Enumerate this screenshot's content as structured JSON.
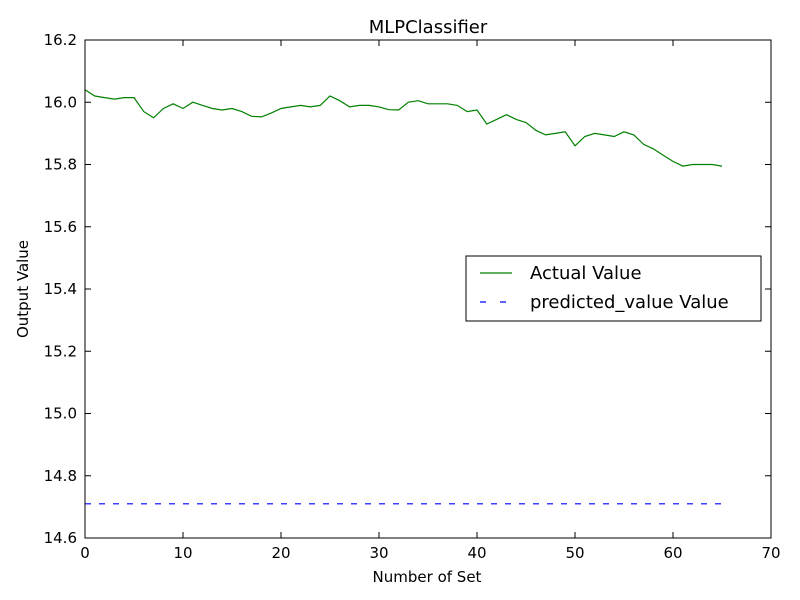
{
  "chart_data": {
    "type": "line",
    "title": "MLPClassifier",
    "xlabel": "Number of Set",
    "ylabel": "Output Value",
    "xlim": [
      0,
      70
    ],
    "ylim": [
      14.6,
      16.2
    ],
    "xticks": [
      0,
      10,
      20,
      30,
      40,
      50,
      60,
      70
    ],
    "yticks": [
      14.6,
      14.8,
      15.0,
      15.2,
      15.4,
      15.6,
      15.8,
      16.0,
      16.2
    ],
    "xtick_labels": [
      "0",
      "10",
      "20",
      "30",
      "40",
      "50",
      "60",
      "70"
    ],
    "ytick_labels": [
      "14.6",
      "14.8",
      "15.0",
      "15.2",
      "15.4",
      "15.6",
      "15.8",
      "16.0",
      "16.2"
    ],
    "grid": false,
    "legend_position": "center-right",
    "series": [
      {
        "name": "Actual Value",
        "color": "#008000",
        "dash": "solid",
        "x": [
          0,
          1,
          2,
          3,
          4,
          5,
          6,
          7,
          8,
          9,
          10,
          11,
          12,
          13,
          14,
          15,
          16,
          17,
          18,
          19,
          20,
          21,
          22,
          23,
          24,
          25,
          26,
          27,
          28,
          29,
          30,
          31,
          32,
          33,
          34,
          35,
          36,
          37,
          38,
          39,
          40,
          41,
          42,
          43,
          44,
          45,
          46,
          47,
          48,
          49,
          50,
          51,
          52,
          53,
          54,
          55,
          56,
          57,
          58,
          59,
          60,
          61,
          62,
          63,
          64,
          65
        ],
        "y": [
          16.04,
          16.02,
          16.015,
          16.01,
          16.015,
          16.015,
          15.97,
          15.95,
          15.98,
          15.995,
          15.98,
          16.0,
          15.99,
          15.98,
          15.975,
          15.98,
          15.97,
          15.955,
          15.953,
          15.965,
          15.98,
          15.985,
          15.99,
          15.985,
          15.99,
          16.02,
          16.005,
          15.985,
          15.99,
          15.99,
          15.985,
          15.976,
          15.975,
          16.0,
          16.005,
          15.995,
          15.995,
          15.995,
          15.99,
          15.97,
          15.975,
          15.93,
          15.945,
          15.96,
          15.945,
          15.935,
          15.91,
          15.895,
          15.9,
          15.905,
          15.86,
          15.89,
          15.9,
          15.895,
          15.89,
          15.905,
          15.895,
          15.865,
          15.85,
          15.83,
          15.81,
          15.795,
          15.8,
          15.8,
          15.8,
          15.795
        ]
      },
      {
        "name": "predicted_value Value",
        "color": "#0000ff",
        "dash": "dashed",
        "x": [
          0,
          65
        ],
        "y": [
          14.71,
          14.71
        ]
      }
    ]
  }
}
